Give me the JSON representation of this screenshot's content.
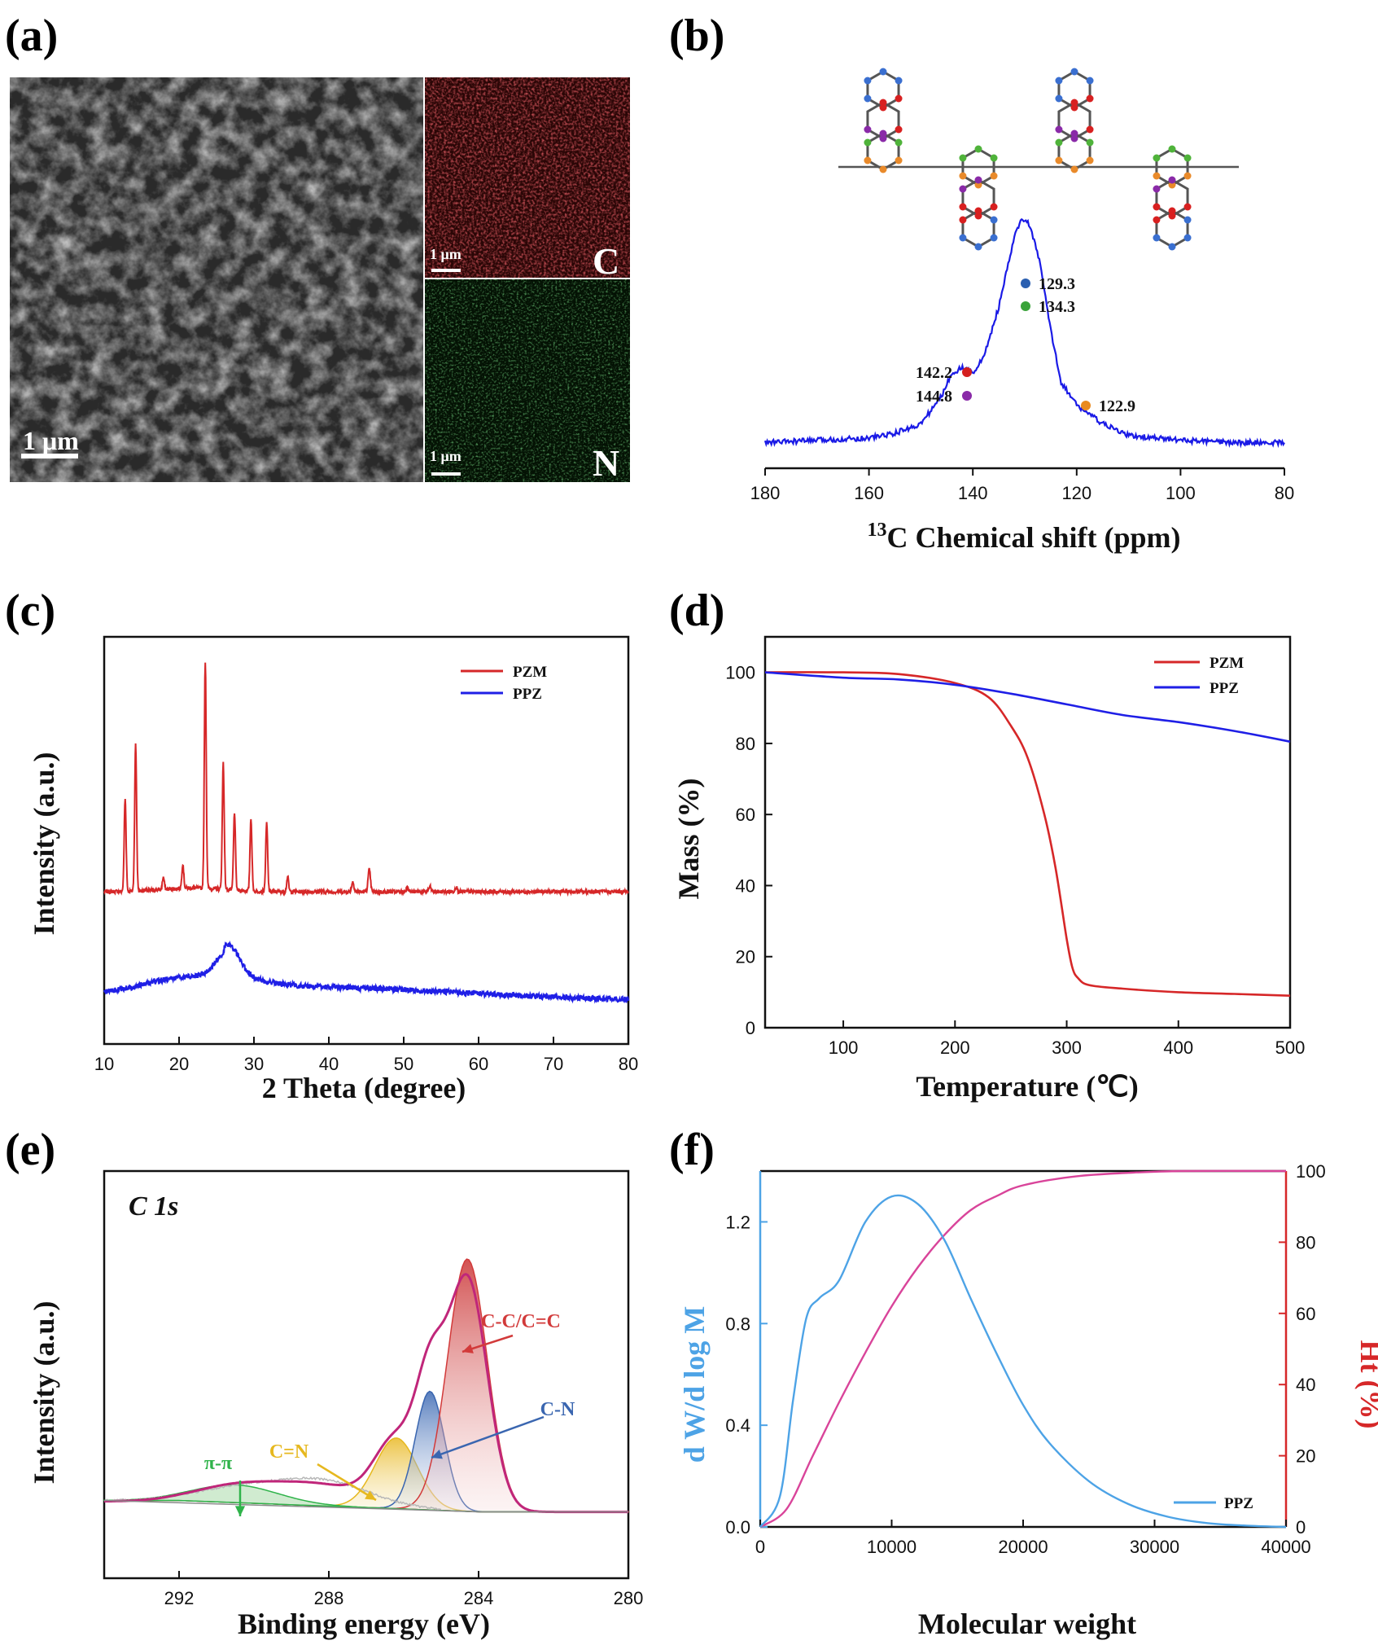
{
  "panel_labels": {
    "a": "(a)",
    "b": "(b)",
    "c": "(c)",
    "d": "(d)",
    "e": "(e)",
    "f": "(f)"
  },
  "sem": {
    "scale_main": "1 μm",
    "scale_c": "1 μm",
    "scale_n": "1 μm",
    "map_c_label": "C",
    "map_n_label": "N",
    "colors": {
      "carbon_map": "#c41e22",
      "nitrogen_map": "#2fa84a"
    }
  },
  "chart_data": [
    {
      "panel": "b",
      "type": "line",
      "xlabel_sup": "13",
      "xlabel_rest": "C Chemical shift (ppm)",
      "xlim": [
        180,
        80
      ],
      "xticks": [
        180,
        160,
        140,
        120,
        100,
        80
      ],
      "ylabel": "",
      "series": [
        {
          "color": "#1a1ae6",
          "points": [
            [
              180,
              0.04
            ],
            [
              170,
              0.05
            ],
            [
              160,
              0.06
            ],
            [
              155,
              0.08
            ],
            [
              150,
              0.12
            ],
            [
              146,
              0.24
            ],
            [
              144,
              0.34
            ],
            [
              142,
              0.36
            ],
            [
              140,
              0.34
            ],
            [
              138,
              0.4
            ],
            [
              135,
              0.62
            ],
            [
              132,
              0.92
            ],
            [
              130.5,
              1.0
            ],
            [
              129,
              0.97
            ],
            [
              127,
              0.8
            ],
            [
              125,
              0.52
            ],
            [
              123,
              0.3
            ],
            [
              120,
              0.2
            ],
            [
              118,
              0.17
            ],
            [
              115,
              0.12
            ],
            [
              110,
              0.07
            ],
            [
              100,
              0.05
            ],
            [
              90,
              0.04
            ],
            [
              80,
              0.04
            ]
          ]
        }
      ],
      "annotations": [
        {
          "text": "129.3",
          "x": 129.3,
          "dot_color": "#2a5fb0"
        },
        {
          "text": "134.3",
          "x": 134.3,
          "dot_color": "#3aa33a"
        },
        {
          "text": "142.2",
          "x": 142.2,
          "dot_color": "#d41f1f"
        },
        {
          "text": "144.8",
          "x": 144.8,
          "dot_color": "#8a2aa8"
        },
        {
          "text": "122.9",
          "x": 122.9,
          "dot_color": "#e98a1f"
        }
      ]
    },
    {
      "panel": "c",
      "type": "line",
      "xlabel": "2 Theta (degree)",
      "ylabel": "Intensity (a.u.)",
      "xlim": [
        10,
        80
      ],
      "xticks": [
        10,
        20,
        30,
        40,
        50,
        60,
        70,
        80
      ],
      "series": [
        {
          "name": "PZM",
          "color": "#d62728",
          "baseline": 0.38,
          "peaks": [
            [
              12.8,
              0.38
            ],
            [
              14.2,
              0.6
            ],
            [
              17.9,
              0.05
            ],
            [
              20.5,
              0.1
            ],
            [
              23.5,
              0.93
            ],
            [
              25.9,
              0.52
            ],
            [
              27.4,
              0.32
            ],
            [
              29.6,
              0.3
            ],
            [
              31.7,
              0.28
            ],
            [
              34.5,
              0.06
            ],
            [
              43.2,
              0.04
            ],
            [
              45.4,
              0.09
            ],
            [
              50.5,
              0.02
            ],
            [
              53.5,
              0.02
            ],
            [
              57,
              0.02
            ]
          ]
        },
        {
          "name": "PPZ",
          "color": "#1f1fe6",
          "baseline": 0.0,
          "hump": {
            "center": 26.5,
            "height": 0.12
          }
        }
      ]
    },
    {
      "panel": "d",
      "type": "line",
      "xlabel": "Temperature (℃)",
      "ylabel": "Mass (%)",
      "xlim": [
        30,
        500
      ],
      "ylim": [
        0,
        110
      ],
      "xticks": [
        100,
        200,
        300,
        400,
        500
      ],
      "yticks": [
        0,
        20,
        40,
        60,
        80,
        100
      ],
      "series": [
        {
          "name": "PZM",
          "color": "#d62728",
          "x": [
            30,
            100,
            150,
            200,
            230,
            250,
            265,
            280,
            290,
            300,
            305,
            310,
            320,
            350,
            400,
            450,
            500
          ],
          "y": [
            100,
            100,
            99.5,
            97,
            93,
            85,
            76,
            60,
            45,
            25,
            17,
            14,
            12,
            11,
            10,
            9.5,
            9
          ]
        },
        {
          "name": "PPZ",
          "color": "#1f1fe6",
          "x": [
            30,
            100,
            150,
            200,
            250,
            300,
            350,
            400,
            450,
            500
          ],
          "y": [
            100,
            98.5,
            98,
            96.5,
            94,
            91,
            88,
            86,
            83.5,
            80.5
          ]
        }
      ]
    },
    {
      "panel": "e",
      "type": "area",
      "title": "C 1s",
      "xlabel": "Binding energy (eV)",
      "ylabel": "Intensity (a.u.)",
      "xlim": [
        294,
        280
      ],
      "xticks": [
        292,
        288,
        284,
        280
      ],
      "components": [
        {
          "name": "C-C/C=C",
          "center": 284.3,
          "height": 1.0,
          "width": 0.75,
          "color": "#d23a3a"
        },
        {
          "name": "C-N",
          "center": 285.3,
          "height": 0.47,
          "width": 0.55,
          "color": "#3a66b0"
        },
        {
          "name": "C=N",
          "center": 286.2,
          "height": 0.28,
          "width": 0.8,
          "color": "#e6b81f"
        },
        {
          "name": "π-π",
          "center": 290.5,
          "height": 0.07,
          "width": 1.6,
          "color": "#2fb34a"
        }
      ],
      "envelope_color": "#c0267a"
    },
    {
      "panel": "f",
      "type": "line",
      "xlabel": "Molecular weight",
      "ylabel": "d W/d log M",
      "ylabel_right": "Ht (%)",
      "xlim": [
        0,
        40000
      ],
      "ylim": [
        0,
        1.4
      ],
      "ylim_right": [
        0,
        100
      ],
      "xticks": [
        0,
        10000,
        20000,
        30000,
        40000
      ],
      "yticks": [
        0.0,
        0.4,
        0.8,
        1.2
      ],
      "yticks_right": [
        0,
        20,
        40,
        60,
        80,
        100
      ],
      "series": [
        {
          "name": "PPZ",
          "color": "#4da3e6",
          "x": [
            0,
            1500,
            2500,
            3500,
            4500,
            6000,
            8000,
            10000,
            12000,
            14000,
            16000,
            18000,
            20000,
            22000,
            25000,
            28000,
            31000,
            34000,
            37000,
            40000
          ],
          "y": [
            0,
            0.12,
            0.5,
            0.82,
            0.9,
            0.97,
            1.2,
            1.3,
            1.27,
            1.13,
            0.9,
            0.68,
            0.48,
            0.33,
            0.18,
            0.09,
            0.04,
            0.015,
            0.005,
            0.0
          ]
        },
        {
          "name": "Ht",
          "color": "#d9449a",
          "axis": "right",
          "x": [
            0,
            2000,
            4000,
            6000,
            8000,
            10000,
            12000,
            14000,
            16000,
            18000,
            20000,
            24000,
            28000,
            32000,
            40000
          ],
          "y": [
            0,
            5,
            20,
            35,
            49,
            62,
            73,
            82,
            89,
            93,
            96,
            98.5,
            99.5,
            100,
            100
          ]
        }
      ]
    }
  ],
  "structure_colors": {
    "blue": "#3a6fd0",
    "red": "#d82020",
    "purple": "#8a2aa8",
    "green": "#4fb33a",
    "orange": "#e98a2a",
    "bond": "#555555"
  }
}
